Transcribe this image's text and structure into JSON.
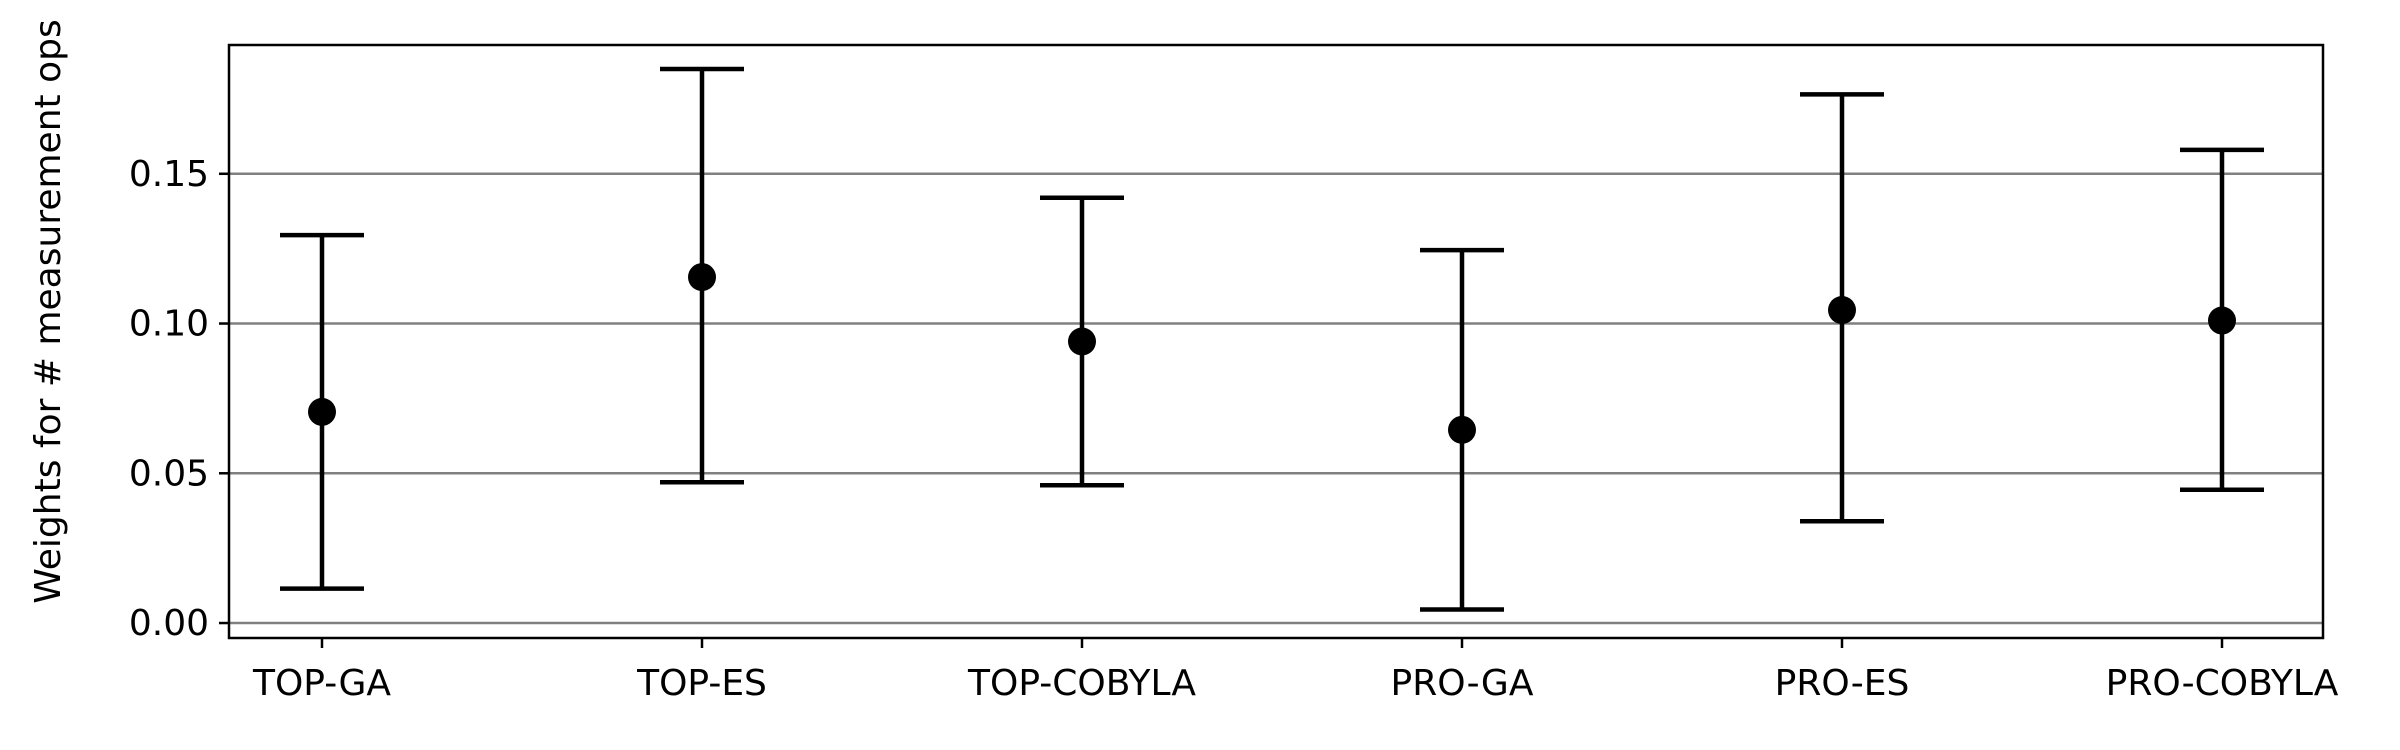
{
  "chart_data": {
    "type": "errorbar",
    "title": "",
    "xlabel": "",
    "ylabel": "Weights for # measurement ops",
    "categories": [
      "TOP-GA",
      "TOP-ES",
      "TOP-COBYLA",
      "PRO-GA",
      "PRO-ES",
      "PRO-COBYLA"
    ],
    "series": [
      {
        "values": [
          0.0705,
          0.1155,
          0.094,
          0.0645,
          0.1045,
          0.101
        ],
        "lower": [
          0.0115,
          0.047,
          0.046,
          0.0045,
          0.034,
          0.0445
        ],
        "upper": [
          0.1295,
          0.185,
          0.142,
          0.1245,
          0.1765,
          0.158
        ]
      }
    ],
    "yticks": [
      0.0,
      0.05,
      0.1,
      0.15
    ],
    "ytick_labels": [
      "0.00",
      "0.05",
      "0.10",
      "0.15"
    ],
    "ylim": [
      -0.005,
      0.193
    ],
    "grid": "horizontal",
    "colors": {
      "marker": "#000000",
      "errorbar": "#000000",
      "grid": "#808080",
      "axes": "#000000"
    }
  }
}
